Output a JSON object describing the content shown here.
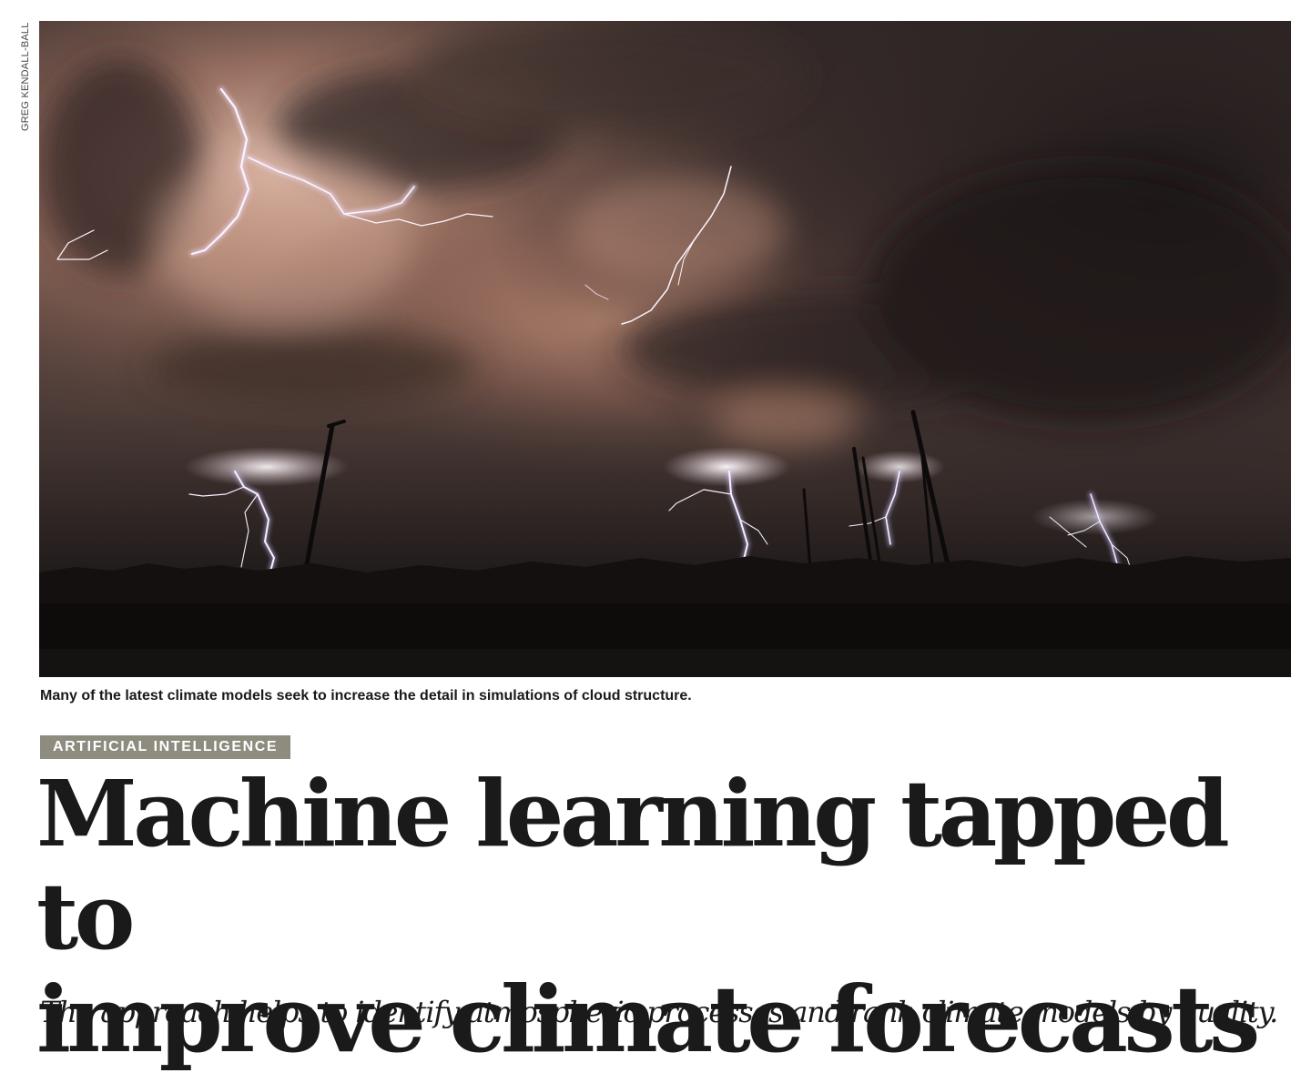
{
  "photo": {
    "credit": "GREG KENDALL-BALL",
    "caption": "Many of the latest climate models seek to increase the detail in simulations of cloud structure."
  },
  "article": {
    "section": "ARTIFICIAL INTELLIGENCE",
    "headline_line1": "Machine learning tapped to",
    "headline_line2": "improve climate forecasts",
    "standfirst": "The approach helps to identify atmospheric processes and rank climate models by quality."
  },
  "colors": {
    "section_tag_bg": "#8e8c7f",
    "text": "#1a1a1a",
    "sky_glow": "#b07a66",
    "sky_dark": "#151011"
  }
}
